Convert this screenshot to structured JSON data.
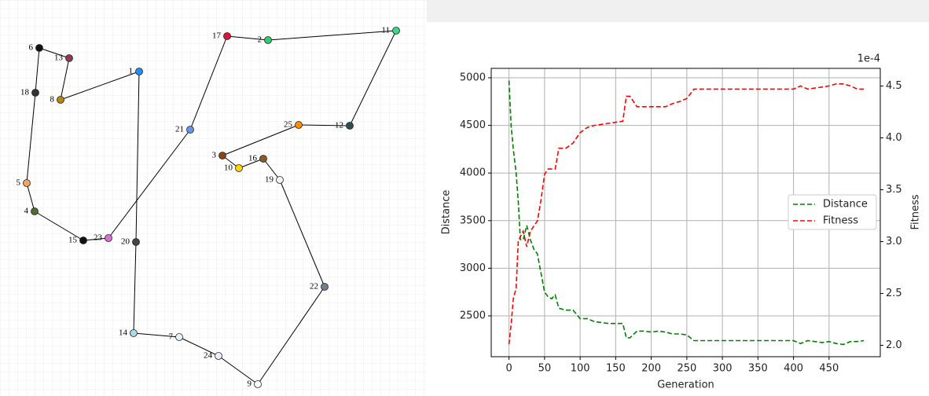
{
  "route": {
    "nodes": [
      "6",
      "13",
      "8",
      "1",
      "20",
      "14",
      "7",
      "24",
      "9",
      "22",
      "19",
      "16",
      "10",
      "3",
      "25",
      "12",
      "11",
      "2",
      "17",
      "21",
      "23",
      "15",
      "4",
      "5",
      "18"
    ]
  },
  "chart_data": {
    "type": "line",
    "x_label": "Generation",
    "y_label": "Distance",
    "y2_label": "Fitness",
    "y2_offset_label": "1e-4",
    "x": [
      0,
      3,
      6,
      10,
      13,
      16,
      20,
      25,
      30,
      35,
      40,
      45,
      50,
      55,
      60,
      65,
      70,
      80,
      90,
      100,
      110,
      120,
      130,
      140,
      150,
      160,
      165,
      170,
      180,
      190,
      200,
      210,
      220,
      230,
      240,
      250,
      260,
      270,
      280,
      300,
      320,
      350,
      380,
      400,
      410,
      420,
      430,
      440,
      450,
      460,
      470,
      480,
      490,
      499
    ],
    "series": [
      {
        "name": "Distance",
        "color": "#008000",
        "values": [
          4970,
          4500,
          4250,
          4000,
          3700,
          3300,
          3300,
          3450,
          3300,
          3200,
          3150,
          2950,
          2750,
          2700,
          2680,
          2720,
          2580,
          2560,
          2560,
          2470,
          2470,
          2440,
          2430,
          2420,
          2420,
          2420,
          2270,
          2270,
          2340,
          2340,
          2330,
          2340,
          2330,
          2310,
          2310,
          2300,
          2240,
          2240,
          2240,
          2240,
          2240,
          2240,
          2240,
          2240,
          2210,
          2240,
          2230,
          2220,
          2230,
          2210,
          2200,
          2230,
          2230,
          2240
        ]
      },
      {
        "name": "Fitness",
        "color": "#ff0000",
        "axis": "y2",
        "values": [
          2.01,
          2.2,
          2.45,
          2.55,
          3.0,
          3.05,
          3.1,
          2.95,
          3.1,
          3.15,
          3.2,
          3.4,
          3.65,
          3.7,
          3.7,
          3.7,
          3.9,
          3.9,
          3.95,
          4.05,
          4.1,
          4.12,
          4.13,
          4.14,
          4.15,
          4.16,
          4.4,
          4.4,
          4.3,
          4.3,
          4.3,
          4.3,
          4.3,
          4.33,
          4.35,
          4.38,
          4.47,
          4.47,
          4.47,
          4.47,
          4.47,
          4.47,
          4.47,
          4.47,
          4.5,
          4.47,
          4.48,
          4.49,
          4.5,
          4.52,
          4.52,
          4.5,
          4.47,
          4.47
        ]
      }
    ],
    "xlim": [
      -25,
      522
    ],
    "ylim": [
      2071,
      5099
    ],
    "y2lim": [
      1.89,
      4.67
    ],
    "xticks": [
      0,
      50,
      100,
      150,
      200,
      250,
      300,
      350,
      400,
      450
    ],
    "yticks": [
      2500,
      3000,
      3500,
      4000,
      4500,
      5000
    ],
    "y2ticks": [
      {
        "value": 2,
        "label": "2.0"
      },
      {
        "value": 2.5,
        "label": "2.5"
      },
      {
        "value": 3,
        "label": "3.0"
      },
      {
        "value": 3.5,
        "label": "3.5"
      },
      {
        "value": 4,
        "label": "4.0"
      },
      {
        "value": 4.5,
        "label": "4.5"
      }
    ],
    "grid": true,
    "legend": "center right",
    "line_style": "dashed"
  }
}
